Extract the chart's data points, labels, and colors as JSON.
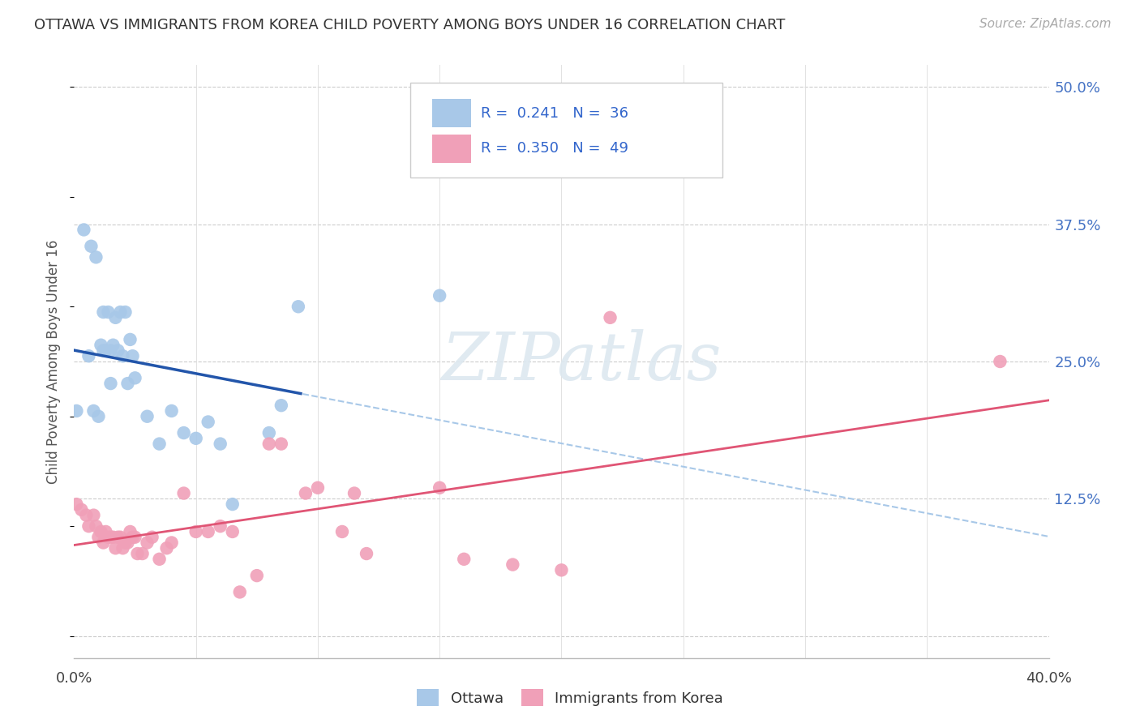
{
  "title": "OTTAWA VS IMMIGRANTS FROM KOREA CHILD POVERTY AMONG BOYS UNDER 16 CORRELATION CHART",
  "source": "Source: ZipAtlas.com",
  "ylabel": "Child Poverty Among Boys Under 16",
  "xlim": [
    0.0,
    0.4
  ],
  "ylim": [
    -0.02,
    0.52
  ],
  "yticks": [
    0.0,
    0.125,
    0.25,
    0.375,
    0.5
  ],
  "ytick_labels": [
    "",
    "12.5%",
    "25.0%",
    "37.5%",
    "50.0%"
  ],
  "ottawa_R": "0.241",
  "ottawa_N": "36",
  "korea_R": "0.350",
  "korea_N": "49",
  "ottawa_color": "#a8c8e8",
  "korea_color": "#f0a0b8",
  "ottawa_line_color": "#2255aa",
  "korea_line_color": "#e05575",
  "dashed_line_color": "#a8c8e8",
  "watermark_text": "ZIPatlas",
  "ottawa_x": [
    0.001,
    0.004,
    0.006,
    0.007,
    0.008,
    0.009,
    0.01,
    0.011,
    0.012,
    0.012,
    0.013,
    0.014,
    0.015,
    0.015,
    0.016,
    0.017,
    0.018,
    0.019,
    0.02,
    0.021,
    0.022,
    0.023,
    0.024,
    0.025,
    0.03,
    0.035,
    0.04,
    0.045,
    0.05,
    0.055,
    0.06,
    0.065,
    0.08,
    0.085,
    0.092,
    0.15
  ],
  "ottawa_y": [
    0.205,
    0.37,
    0.255,
    0.355,
    0.205,
    0.345,
    0.2,
    0.265,
    0.26,
    0.295,
    0.26,
    0.295,
    0.23,
    0.26,
    0.265,
    0.29,
    0.26,
    0.295,
    0.255,
    0.295,
    0.23,
    0.27,
    0.255,
    0.235,
    0.2,
    0.175,
    0.205,
    0.185,
    0.18,
    0.195,
    0.175,
    0.12,
    0.185,
    0.21,
    0.3,
    0.31
  ],
  "korea_x": [
    0.001,
    0.003,
    0.005,
    0.006,
    0.008,
    0.009,
    0.01,
    0.011,
    0.012,
    0.013,
    0.014,
    0.015,
    0.016,
    0.017,
    0.018,
    0.019,
    0.02,
    0.021,
    0.022,
    0.023,
    0.024,
    0.025,
    0.026,
    0.028,
    0.03,
    0.032,
    0.035,
    0.038,
    0.04,
    0.045,
    0.05,
    0.055,
    0.06,
    0.065,
    0.068,
    0.075,
    0.08,
    0.085,
    0.095,
    0.1,
    0.11,
    0.115,
    0.12,
    0.15,
    0.16,
    0.18,
    0.2,
    0.22,
    0.38
  ],
  "korea_y": [
    0.12,
    0.115,
    0.11,
    0.1,
    0.11,
    0.1,
    0.09,
    0.095,
    0.085,
    0.095,
    0.09,
    0.09,
    0.09,
    0.08,
    0.09,
    0.09,
    0.08,
    0.085,
    0.085,
    0.095,
    0.09,
    0.09,
    0.075,
    0.075,
    0.085,
    0.09,
    0.07,
    0.08,
    0.085,
    0.13,
    0.095,
    0.095,
    0.1,
    0.095,
    0.04,
    0.055,
    0.175,
    0.175,
    0.13,
    0.135,
    0.095,
    0.13,
    0.075,
    0.135,
    0.07,
    0.065,
    0.06,
    0.29,
    0.25
  ]
}
